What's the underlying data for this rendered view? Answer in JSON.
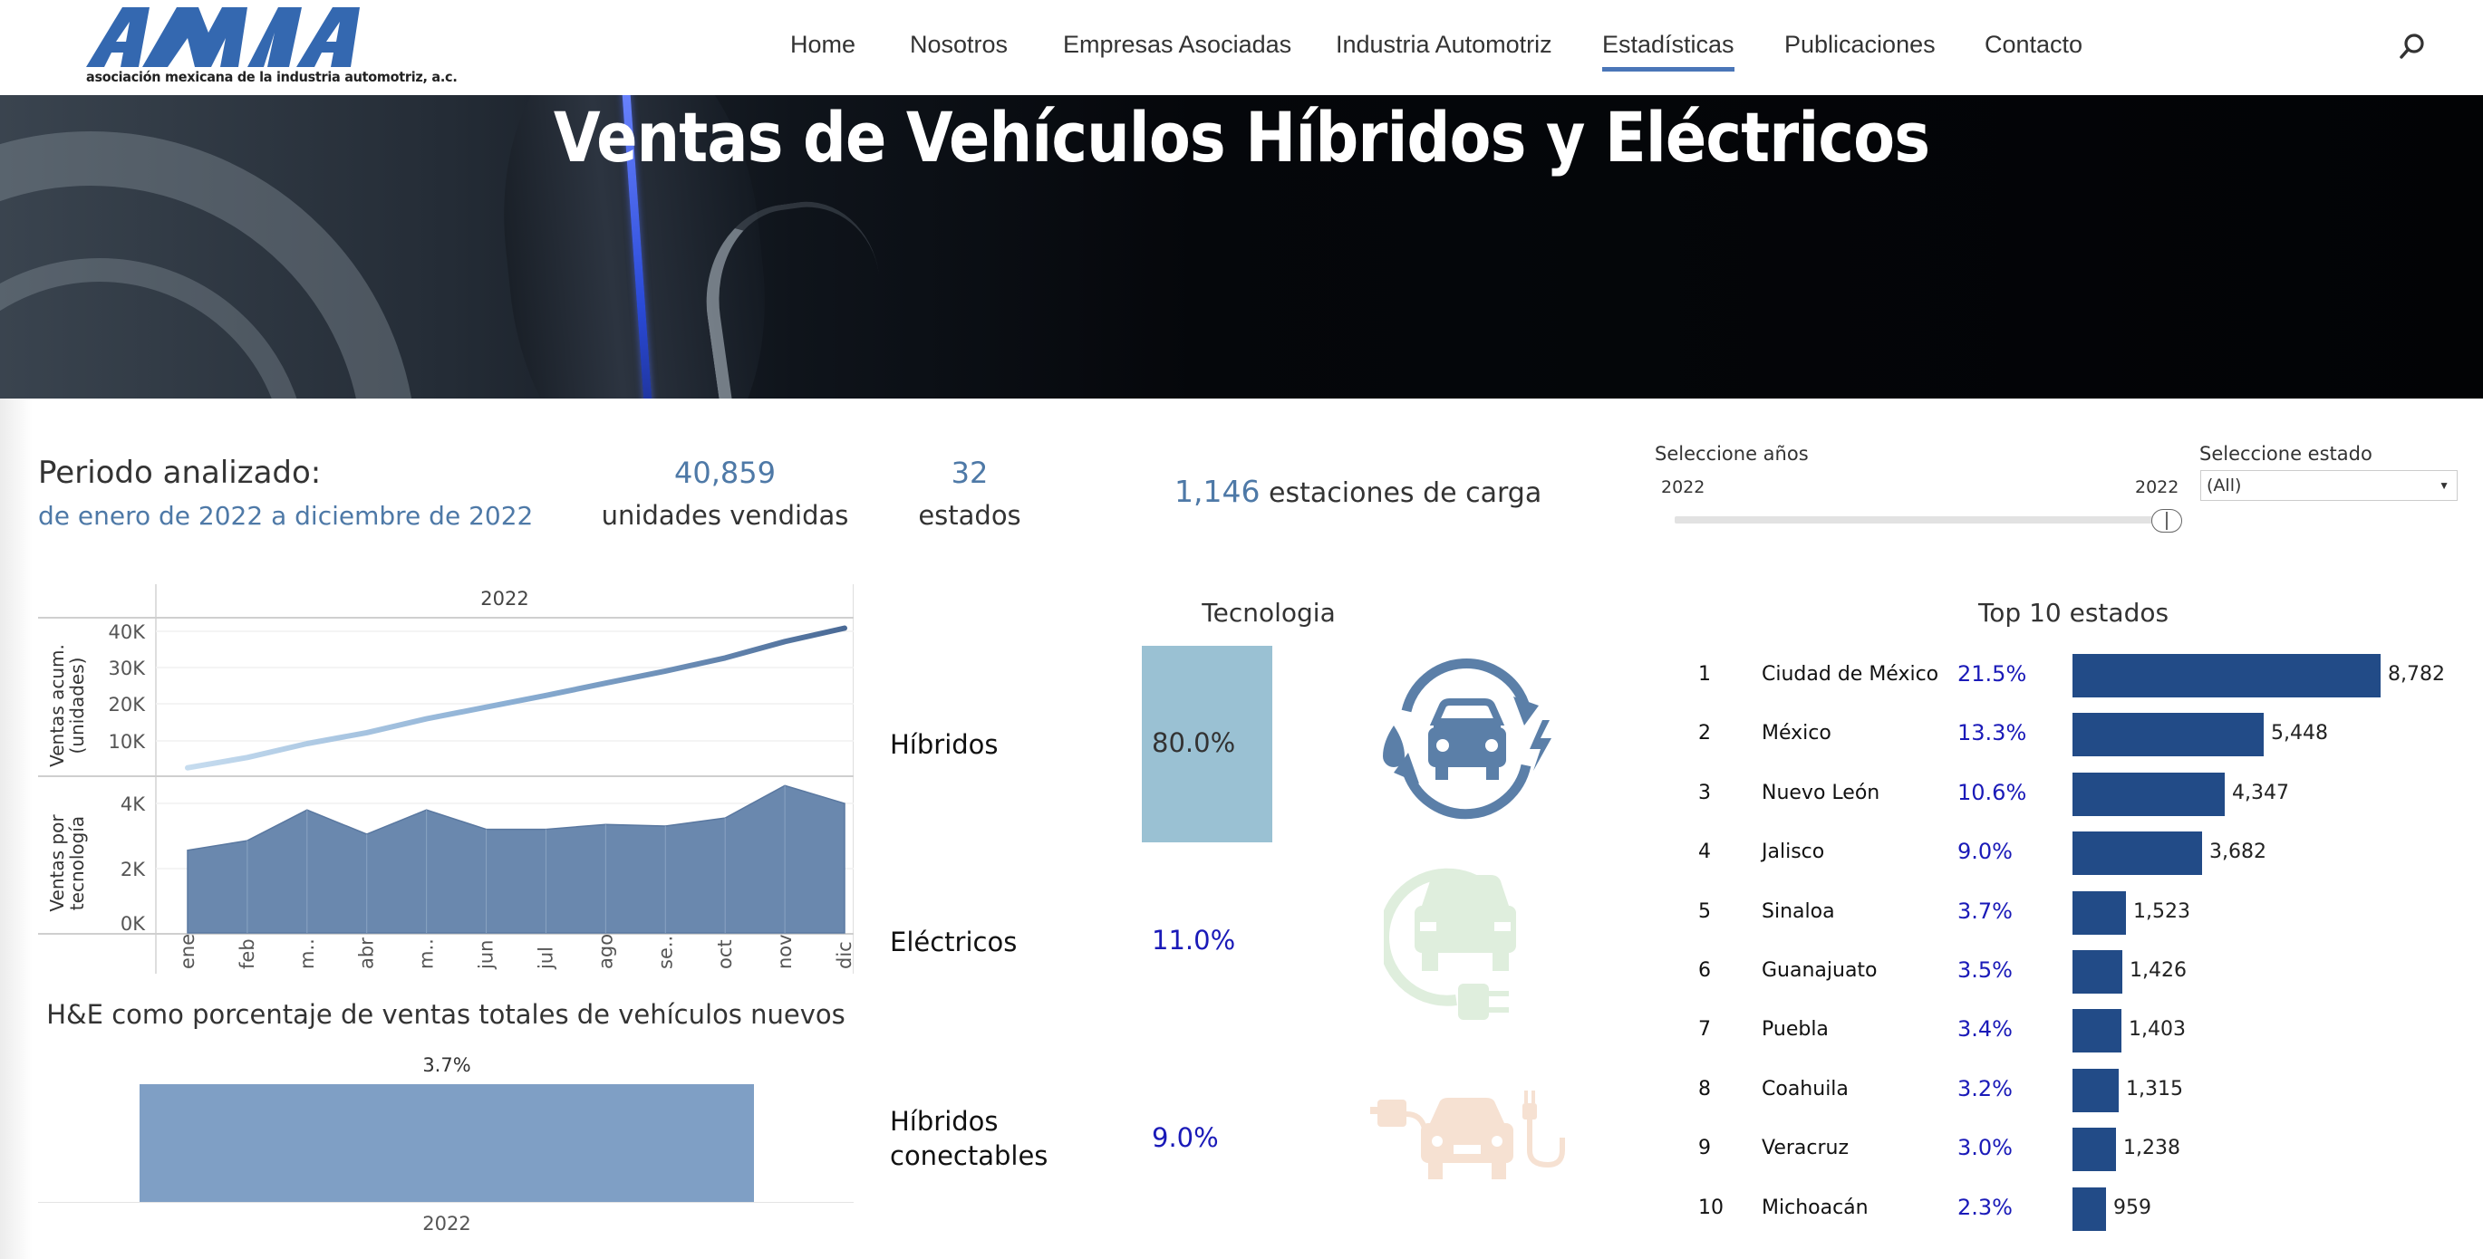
{
  "nav": {
    "logo_text": "AMIA",
    "logo_subtitle": "asociación mexicana de la industria automotriz, a.c.",
    "items": [
      {
        "label": "Home",
        "active": false
      },
      {
        "label": "Nosotros",
        "active": false
      },
      {
        "label": "Empresas Asociadas",
        "active": false
      },
      {
        "label": "Industria Automotriz",
        "active": false
      },
      {
        "label": "Estadísticas",
        "active": true
      },
      {
        "label": "Publicaciones",
        "active": false
      },
      {
        "label": "Contacto",
        "active": false
      }
    ],
    "search_icon": "search-icon",
    "accent_color": "#4a76b8"
  },
  "hero": {
    "title": "Ventas de Vehículos Híbridos y Eléctricos"
  },
  "summary": {
    "periodo_label": "Periodo analizado:",
    "periodo_range": "de enero de 2022 a diciembre de 2022",
    "units_value": "40,859",
    "units_label": "unidades vendidas",
    "states_value": "32",
    "states_label": "estados",
    "stations_value": "1,146",
    "stations_label": "estaciones de carga"
  },
  "filters": {
    "years_label": "Seleccione años",
    "year_min": "2022",
    "year_max": "2022",
    "state_label": "Seleccione estado",
    "state_value": "(All)"
  },
  "tecnologia": {
    "title": "Tecnologia",
    "items": [
      {
        "label": "Híbridos",
        "value": "80.0%",
        "icon": "hybrid-car-icon",
        "color": "#5b7fa8"
      },
      {
        "label": "Eléctricos",
        "value": "11.0%",
        "icon": "electric-car-plug-icon",
        "color": "#dfeedd"
      },
      {
        "label_line1": "Híbridos",
        "label_line2": "conectables",
        "value": "9.0%",
        "icon": "plugin-hybrid-car-icon",
        "color": "#f6e1d2"
      }
    ]
  },
  "top10": {
    "title": "Top 10 estados",
    "rows": [
      {
        "rank": "1",
        "state": "Ciudad de México",
        "pct": "21.5%",
        "units": "8,782",
        "value": 8782
      },
      {
        "rank": "2",
        "state": "México",
        "pct": "13.3%",
        "units": "5,448",
        "value": 5448
      },
      {
        "rank": "3",
        "state": "Nuevo León",
        "pct": "10.6%",
        "units": "4,347",
        "value": 4347
      },
      {
        "rank": "4",
        "state": "Jalisco",
        "pct": "9.0%",
        "units": "3,682",
        "value": 3682
      },
      {
        "rank": "5",
        "state": "Sinaloa",
        "pct": "3.7%",
        "units": "1,523",
        "value": 1523
      },
      {
        "rank": "6",
        "state": "Guanajuato",
        "pct": "3.5%",
        "units": "1,426",
        "value": 1426
      },
      {
        "rank": "7",
        "state": "Puebla",
        "pct": "3.4%",
        "units": "1,403",
        "value": 1403
      },
      {
        "rank": "8",
        "state": "Coahuila",
        "pct": "3.2%",
        "units": "1,315",
        "value": 1315
      },
      {
        "rank": "9",
        "state": "Veracruz",
        "pct": "3.0%",
        "units": "1,238",
        "value": 1238
      },
      {
        "rank": "10",
        "state": "Michoacán",
        "pct": "2.3%",
        "units": "959",
        "value": 959
      }
    ]
  },
  "chart_data": [
    {
      "type": "line",
      "title": "2022",
      "ylabel": "Ventas acum. (unidades)",
      "categories": [
        "ene",
        "feb",
        "m..",
        "abr",
        "m..",
        "jun",
        "jul",
        "ago",
        "se..",
        "oct",
        "nov",
        "dic"
      ],
      "values": [
        2550,
        5400,
        9200,
        12200,
        16000,
        19200,
        22400,
        25800,
        29100,
        32700,
        37200,
        40859
      ],
      "yticks": [
        "10K",
        "20K",
        "30K",
        "40K"
      ],
      "ylim": [
        0,
        43000
      ]
    },
    {
      "type": "area",
      "ylabel": "Ventas por tecnología",
      "categories": [
        "ene",
        "feb",
        "m..",
        "abr",
        "m..",
        "jun",
        "jul",
        "ago",
        "se..",
        "oct",
        "nov",
        "dic"
      ],
      "values": [
        2550,
        2850,
        3800,
        3050,
        3800,
        3200,
        3200,
        3350,
        3300,
        3550,
        4550,
        4000
      ],
      "yticks": [
        "0K",
        "2K",
        "4K"
      ],
      "ylim": [
        0,
        4800
      ]
    },
    {
      "type": "bar",
      "title": "H&E como porcentaje de ventas totales de vehículos nuevos",
      "categories": [
        "2022"
      ],
      "values": [
        3.7
      ],
      "labels": [
        "3.7%"
      ]
    },
    {
      "type": "bar",
      "title": "Top 10 estados",
      "categories": [
        "Ciudad de México",
        "México",
        "Nuevo León",
        "Jalisco",
        "Sinaloa",
        "Guanajuato",
        "Puebla",
        "Coahuila",
        "Veracruz",
        "Michoacán"
      ],
      "values": [
        8782,
        5448,
        4347,
        3682,
        1523,
        1426,
        1403,
        1315,
        1238,
        959
      ],
      "percent": [
        "21.5%",
        "13.3%",
        "10.6%",
        "9.0%",
        "3.7%",
        "3.5%",
        "3.4%",
        "3.2%",
        "3.0%",
        "2.3%"
      ]
    },
    {
      "type": "bar",
      "title": "Tecnologia",
      "categories": [
        "Híbridos",
        "Eléctricos",
        "Híbridos conectables"
      ],
      "values": [
        80.0,
        11.0,
        9.0
      ]
    }
  ],
  "chart_labels": {
    "year_header": "2022",
    "line_ylabel_1": "Ventas acum.",
    "line_ylabel_2": "(unidades)",
    "area_ylabel_1": "Ventas por",
    "area_ylabel_2": "tecnología",
    "he_title": "H&E como porcentaje de ventas totales de vehículos nuevos",
    "he_value": "3.7%",
    "he_year": "2022"
  }
}
